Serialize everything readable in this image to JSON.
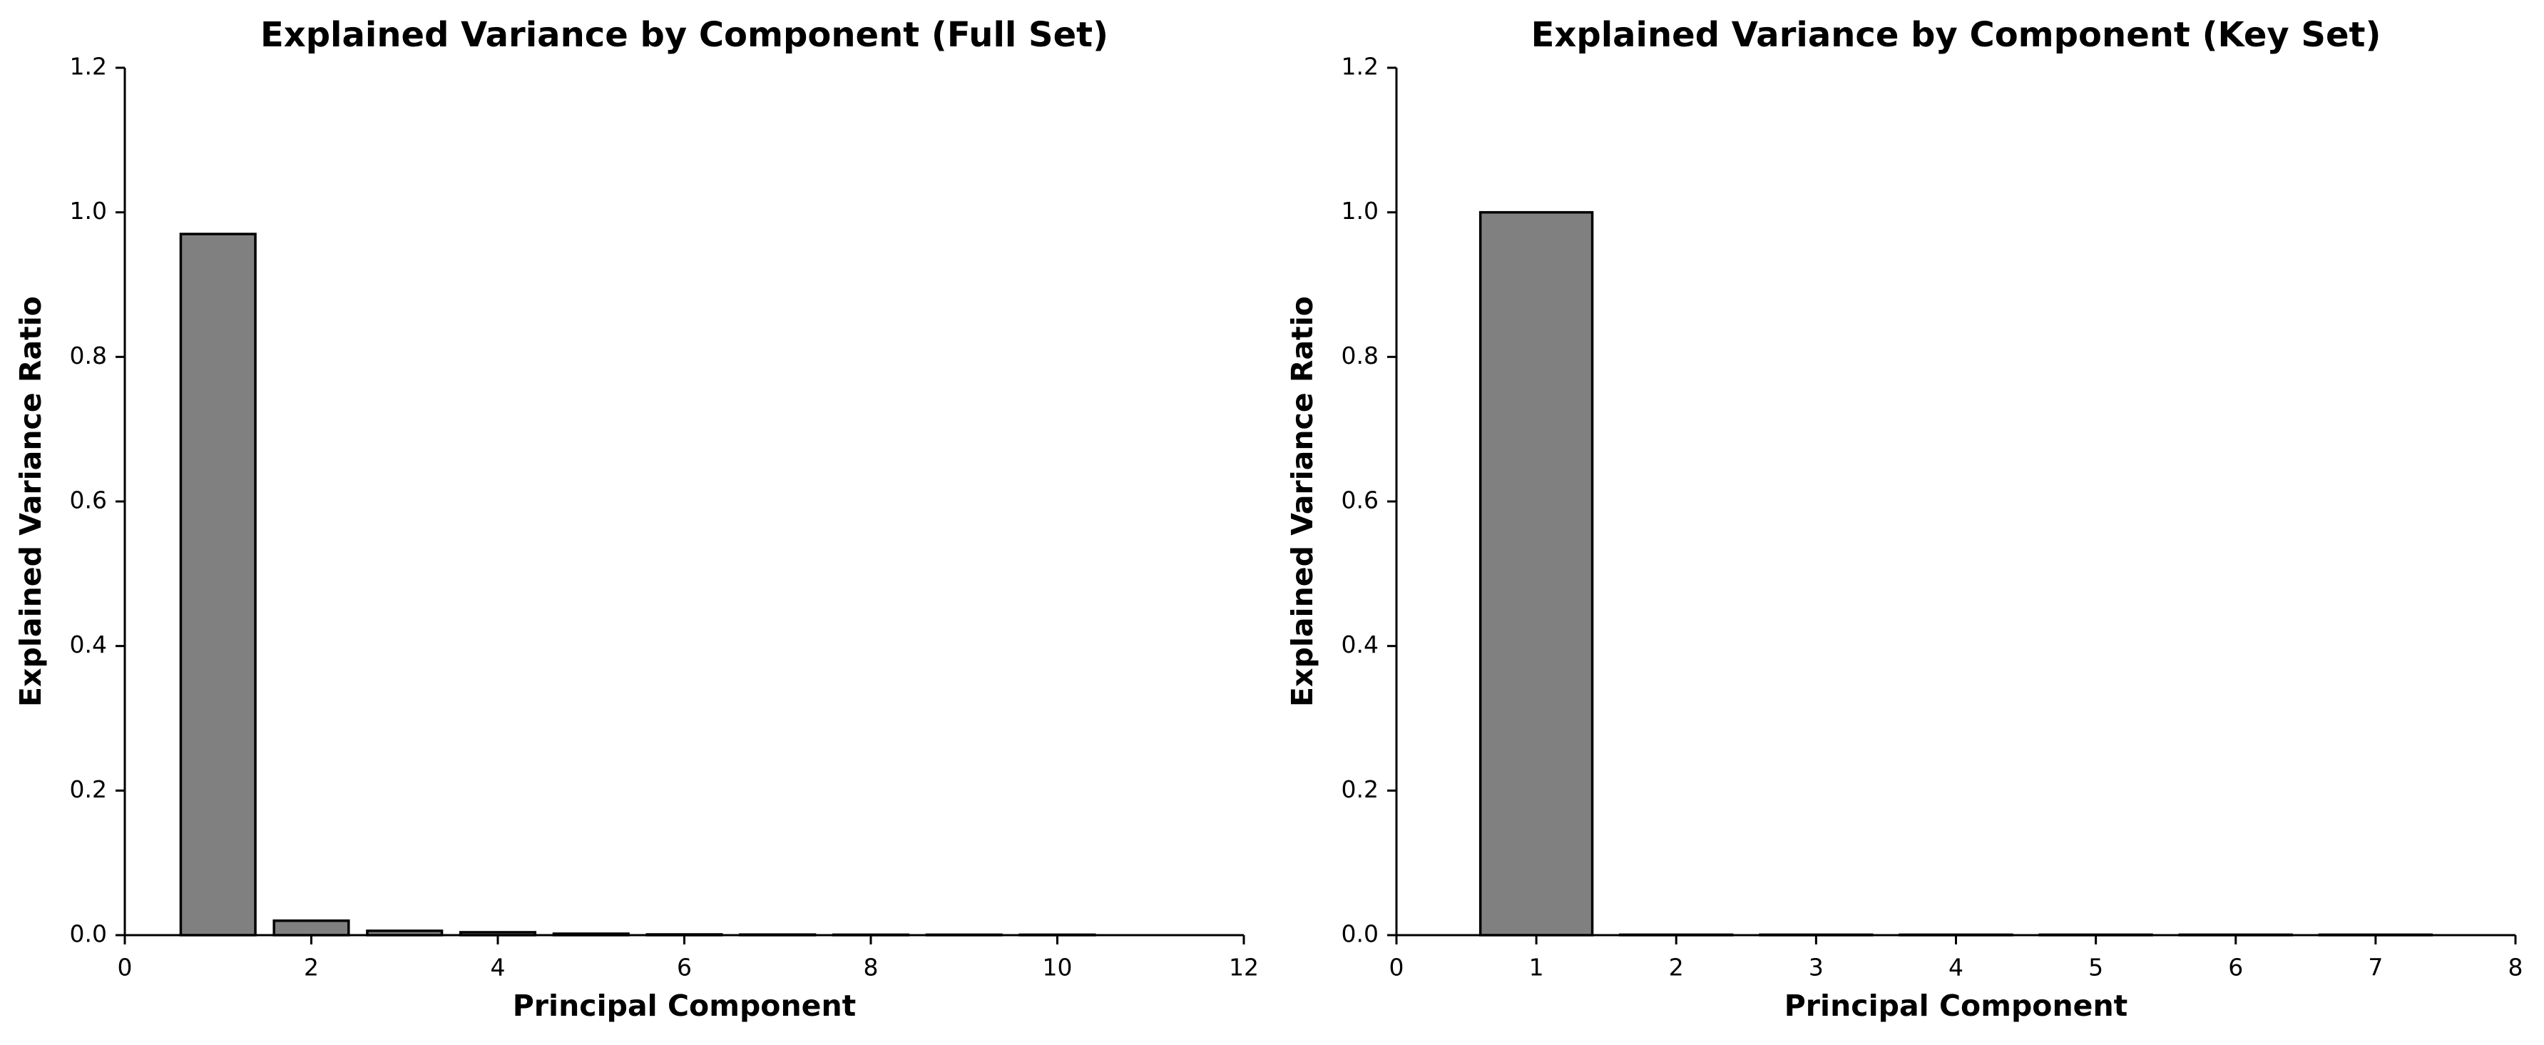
{
  "chart_data": [
    {
      "type": "bar",
      "title": "Explained Variance by Component (Full Set)",
      "xlabel": "Principal Component",
      "ylabel": "Explained Variance Ratio",
      "x": [
        1,
        2,
        3,
        4,
        5,
        6,
        7,
        8,
        9,
        10
      ],
      "values": [
        0.97,
        0.02,
        0.006,
        0.004,
        0.002,
        0.001,
        0.0008,
        0.0005,
        0.0003,
        0.0002
      ],
      "xlim": [
        0,
        12
      ],
      "ylim": [
        0,
        1.2
      ],
      "xticks": [
        0,
        2,
        4,
        6,
        8,
        10,
        12
      ],
      "yticks": [
        0.0,
        0.2,
        0.4,
        0.6,
        0.8,
        1.0,
        1.2
      ],
      "xtick_labels": [
        "0",
        "2",
        "4",
        "6",
        "8",
        "10",
        "12"
      ],
      "ytick_labels": [
        "0.0",
        "0.2",
        "0.4",
        "0.6",
        "0.8",
        "1.0",
        "1.2"
      ],
      "bar_width": 0.8,
      "bar_color": "#808080",
      "edge_color": "#000000",
      "grid": false
    },
    {
      "type": "bar",
      "title": "Explained Variance by Component (Key Set)",
      "xlabel": "Principal Component",
      "ylabel": "Explained Variance Ratio",
      "x": [
        1,
        2,
        3,
        4,
        5,
        6,
        7
      ],
      "values": [
        1.0,
        0.0003,
        0.0002,
        0.0001,
        0.0001,
        0.0001,
        0.0001
      ],
      "xlim": [
        0,
        8
      ],
      "ylim": [
        0,
        1.2
      ],
      "xticks": [
        0,
        1,
        2,
        3,
        4,
        5,
        6,
        7,
        8
      ],
      "yticks": [
        0.0,
        0.2,
        0.4,
        0.6,
        0.8,
        1.0,
        1.2
      ],
      "xtick_labels": [
        "0",
        "1",
        "2",
        "3",
        "4",
        "5",
        "6",
        "7",
        "8"
      ],
      "ytick_labels": [
        "0.0",
        "0.2",
        "0.4",
        "0.6",
        "0.8",
        "1.0",
        "1.2"
      ],
      "bar_width": 0.8,
      "bar_color": "#808080",
      "edge_color": "#000000",
      "grid": false
    }
  ]
}
